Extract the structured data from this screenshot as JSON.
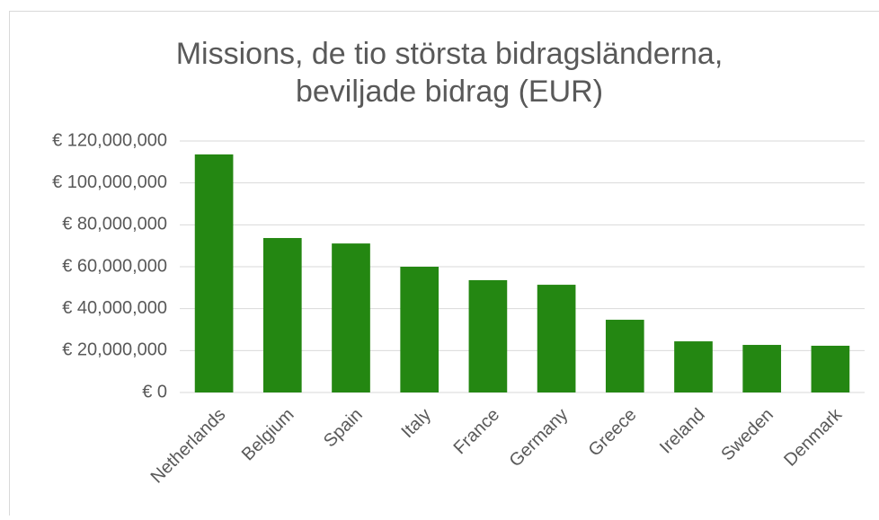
{
  "chart_data": {
    "type": "bar",
    "title": [
      "Missions, de tio största bidragsländerna,",
      "beviljade bidrag (EUR)"
    ],
    "categories": [
      "Netherlands",
      "Belgium",
      "Spain",
      "Italy",
      "France",
      "Germany",
      "Greece",
      "Ireland",
      "Sweden",
      "Denmark"
    ],
    "values": [
      113600000,
      73700000,
      71100000,
      60000000,
      53600000,
      51400000,
      34700000,
      24400000,
      22700000,
      22300000
    ],
    "color": "#248712",
    "ylim": [
      0,
      120000000
    ],
    "yticks": [
      {
        "value": 0,
        "label": "€ 0"
      },
      {
        "value": 20000000,
        "label": "€ 20,000,000"
      },
      {
        "value": 40000000,
        "label": "€ 40,000,000"
      },
      {
        "value": 60000000,
        "label": "€ 60,000,000"
      },
      {
        "value": 80000000,
        "label": "€ 80,000,000"
      },
      {
        "value": 100000000,
        "label": "€ 100,000,000"
      },
      {
        "value": 120000000,
        "label": "€ 120,000,000"
      }
    ],
    "grid": true
  }
}
